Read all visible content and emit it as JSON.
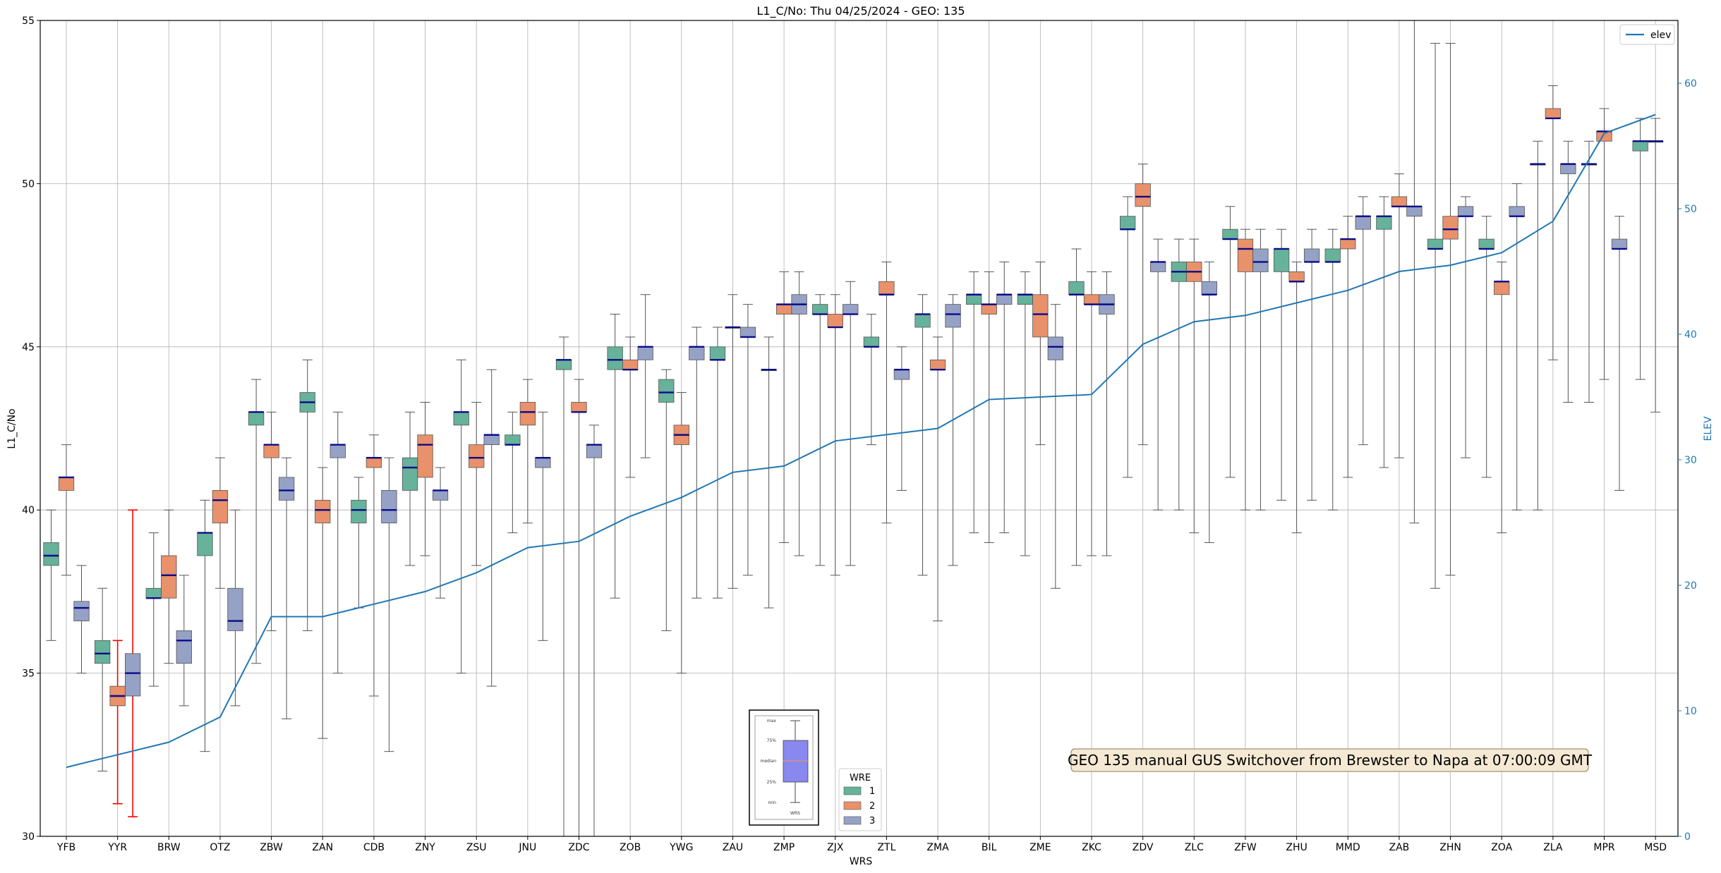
{
  "chart_data": {
    "type": "boxplot",
    "title": "L1_C/No: Thu 04/25/2024 - GEO: 135",
    "xlabel": "WRS",
    "ylabel": "L1_C/No",
    "ylabel_right": "ELEV",
    "ylim": [
      30,
      55
    ],
    "ylim_right": [
      0,
      65
    ],
    "yticks": [
      30,
      35,
      40,
      45,
      50,
      55
    ],
    "yticks_right": [
      0,
      10,
      20,
      30,
      40,
      50,
      60
    ],
    "grid": true,
    "categories": [
      "YFB",
      "YYR",
      "BRW",
      "OTZ",
      "ZBW",
      "ZAN",
      "CDB",
      "ZNY",
      "ZSU",
      "JNU",
      "ZDC",
      "ZOB",
      "YWG",
      "ZAU",
      "ZMP",
      "ZJX",
      "ZTL",
      "ZMA",
      "BIL",
      "ZME",
      "ZKC",
      "ZDV",
      "ZLC",
      "ZFW",
      "ZHU",
      "MMD",
      "ZAB",
      "ZHN",
      "ZOA",
      "ZLA",
      "MPR",
      "MSD"
    ],
    "wre_legend": {
      "title": "WRE",
      "entries": [
        {
          "label": "1",
          "color": "#66b29a"
        },
        {
          "label": "2",
          "color": "#e8916b"
        },
        {
          "label": "3",
          "color": "#95a1c5"
        }
      ]
    },
    "series_legend": {
      "label": "elev",
      "color": "#1f77b4",
      "position": "upper right"
    },
    "inset_labels": [
      "max",
      "75%",
      "median",
      "25%",
      "min",
      "WRS"
    ],
    "annotation": "GEO 135 manual GUS Switchover from Brewster to Napa at 07:00:09 GMT",
    "elev": [
      5.5,
      6.5,
      7.5,
      9.5,
      17.5,
      17.5,
      18.5,
      19.5,
      21,
      23,
      23.5,
      25.5,
      27,
      29,
      29.5,
      31.5,
      32,
      32.5,
      34.8,
      35,
      35.2,
      39.2,
      41,
      41.5,
      42.5,
      43.5,
      45,
      45.5,
      46.5,
      49,
      56,
      57.5
    ],
    "boxes": [
      {
        "cat": 0,
        "wre": 1,
        "min": 36,
        "q1": 38.3,
        "med": 38.6,
        "q3": 39,
        "max": 40
      },
      {
        "cat": 0,
        "wre": 2,
        "min": 38,
        "q1": 40.6,
        "med": 41,
        "q3": 41,
        "max": 42
      },
      {
        "cat": 0,
        "wre": 3,
        "min": 35,
        "q1": 36.6,
        "med": 37,
        "q3": 37.2,
        "max": 38.3
      },
      {
        "cat": 1,
        "wre": 1,
        "min": 32,
        "q1": 35.3,
        "med": 35.6,
        "q3": 36,
        "max": 37.6
      },
      {
        "cat": 1,
        "wre": 2,
        "min": 31,
        "q1": 34,
        "med": 34.3,
        "q3": 34.6,
        "max": 36,
        "whisker_color": "#ff0000"
      },
      {
        "cat": 1,
        "wre": 3,
        "min": 30.6,
        "q1": 34.3,
        "med": 35,
        "q3": 35.6,
        "max": 40,
        "whisker_color": "#ff0000"
      },
      {
        "cat": 2,
        "wre": 1,
        "min": 34.6,
        "q1": 37.3,
        "med": 37.3,
        "q3": 37.6,
        "max": 39.3
      },
      {
        "cat": 2,
        "wre": 2,
        "min": 35.3,
        "q1": 37.3,
        "med": 38,
        "q3": 38.6,
        "max": 40
      },
      {
        "cat": 2,
        "wre": 3,
        "min": 34,
        "q1": 35.3,
        "med": 36,
        "q3": 36.3,
        "max": 38
      },
      {
        "cat": 3,
        "wre": 1,
        "min": 32.6,
        "q1": 38.6,
        "med": 39.3,
        "q3": 39.3,
        "max": 40.3
      },
      {
        "cat": 3,
        "wre": 2,
        "min": 37.6,
        "q1": 39.6,
        "med": 40.3,
        "q3": 40.6,
        "max": 41.6
      },
      {
        "cat": 3,
        "wre": 3,
        "min": 34,
        "q1": 36.3,
        "med": 36.6,
        "q3": 37.6,
        "max": 40
      },
      {
        "cat": 4,
        "wre": 1,
        "min": 35.3,
        "q1": 42.6,
        "med": 43,
        "q3": 43,
        "max": 44
      },
      {
        "cat": 4,
        "wre": 2,
        "min": 36.3,
        "q1": 41.6,
        "med": 42,
        "q3": 42,
        "max": 43
      },
      {
        "cat": 4,
        "wre": 3,
        "min": 33.6,
        "q1": 40.3,
        "med": 40.6,
        "q3": 41,
        "max": 41.6
      },
      {
        "cat": 5,
        "wre": 1,
        "min": 36.3,
        "q1": 43,
        "med": 43.3,
        "q3": 43.6,
        "max": 44.6
      },
      {
        "cat": 5,
        "wre": 2,
        "min": 33,
        "q1": 39.6,
        "med": 40,
        "q3": 40.3,
        "max": 41.3
      },
      {
        "cat": 5,
        "wre": 3,
        "min": 35,
        "q1": 41.6,
        "med": 42,
        "q3": 42,
        "max": 43
      },
      {
        "cat": 6,
        "wre": 1,
        "min": 37,
        "q1": 39.6,
        "med": 40,
        "q3": 40.3,
        "max": 41
      },
      {
        "cat": 6,
        "wre": 2,
        "min": 34.3,
        "q1": 41.3,
        "med": 41.6,
        "q3": 41.6,
        "max": 42.3
      },
      {
        "cat": 6,
        "wre": 3,
        "min": 32.6,
        "q1": 39.6,
        "med": 40,
        "q3": 40.6,
        "max": 41.6
      },
      {
        "cat": 7,
        "wre": 1,
        "min": 38.3,
        "q1": 40.6,
        "med": 41.3,
        "q3": 41.6,
        "max": 43
      },
      {
        "cat": 7,
        "wre": 2,
        "min": 38.6,
        "q1": 41,
        "med": 42,
        "q3": 42.3,
        "max": 43.3
      },
      {
        "cat": 7,
        "wre": 3,
        "min": 37.3,
        "q1": 40.3,
        "med": 40.6,
        "q3": 40.6,
        "max": 41.3
      },
      {
        "cat": 8,
        "wre": 1,
        "min": 35,
        "q1": 42.6,
        "med": 43,
        "q3": 43,
        "max": 44.6
      },
      {
        "cat": 8,
        "wre": 2,
        "min": 38.3,
        "q1": 41.3,
        "med": 41.6,
        "q3": 42,
        "max": 43.3
      },
      {
        "cat": 8,
        "wre": 3,
        "min": 34.6,
        "q1": 42,
        "med": 42.3,
        "q3": 42.3,
        "max": 44.3
      },
      {
        "cat": 9,
        "wre": 1,
        "min": 39.3,
        "q1": 42,
        "med": 42,
        "q3": 42.3,
        "max": 43
      },
      {
        "cat": 9,
        "wre": 2,
        "min": 39.6,
        "q1": 42.6,
        "med": 43,
        "q3": 43.3,
        "max": 44
      },
      {
        "cat": 9,
        "wre": 3,
        "min": 36,
        "q1": 41.3,
        "med": 41.6,
        "q3": 41.6,
        "max": 43
      },
      {
        "cat": 10,
        "wre": 1,
        "min": 30,
        "q1": 44.3,
        "med": 44.6,
        "q3": 44.6,
        "max": 45.3
      },
      {
        "cat": 10,
        "wre": 2,
        "min": 30,
        "q1": 43,
        "med": 43,
        "q3": 43.3,
        "max": 44
      },
      {
        "cat": 10,
        "wre": 3,
        "min": 30,
        "q1": 41.6,
        "med": 42,
        "q3": 42,
        "max": 42.6
      },
      {
        "cat": 11,
        "wre": 1,
        "min": 37.3,
        "q1": 44.3,
        "med": 44.6,
        "q3": 45,
        "max": 46
      },
      {
        "cat": 11,
        "wre": 2,
        "min": 41,
        "q1": 44.3,
        "med": 44.3,
        "q3": 44.6,
        "max": 45.3
      },
      {
        "cat": 11,
        "wre": 3,
        "min": 41.6,
        "q1": 44.6,
        "med": 45,
        "q3": 45,
        "max": 46.6
      },
      {
        "cat": 12,
        "wre": 1,
        "min": 36.3,
        "q1": 43.3,
        "med": 43.6,
        "q3": 44,
        "max": 44.3
      },
      {
        "cat": 12,
        "wre": 2,
        "min": 35,
        "q1": 42,
        "med": 42.3,
        "q3": 42.6,
        "max": 43.6
      },
      {
        "cat": 12,
        "wre": 3,
        "min": 37.3,
        "q1": 44.6,
        "med": 45,
        "q3": 45,
        "max": 45.6
      },
      {
        "cat": 13,
        "wre": 1,
        "min": 37.3,
        "q1": 44.6,
        "med": 44.6,
        "q3": 45,
        "max": 45.6
      },
      {
        "cat": 13,
        "wre": 2,
        "min": 37.6,
        "q1": 45.6,
        "med": 45.6,
        "q3": 45.6,
        "max": 46.6
      },
      {
        "cat": 13,
        "wre": 3,
        "min": 38,
        "q1": 45.3,
        "med": 45.3,
        "q3": 45.6,
        "max": 46.3
      },
      {
        "cat": 14,
        "wre": 1,
        "min": 37,
        "q1": 44.3,
        "med": 44.3,
        "q3": 44.3,
        "max": 45.3
      },
      {
        "cat": 14,
        "wre": 2,
        "min": 39,
        "q1": 46,
        "med": 46.3,
        "q3": 46.3,
        "max": 47.3
      },
      {
        "cat": 14,
        "wre": 3,
        "min": 38.6,
        "q1": 46,
        "med": 46.3,
        "q3": 46.6,
        "max": 47.3
      },
      {
        "cat": 15,
        "wre": 1,
        "min": 38.3,
        "q1": 46,
        "med": 46,
        "q3": 46.3,
        "max": 46.6
      },
      {
        "cat": 15,
        "wre": 2,
        "min": 38,
        "q1": 45.6,
        "med": 45.6,
        "q3": 46,
        "max": 46.6
      },
      {
        "cat": 15,
        "wre": 3,
        "min": 38.3,
        "q1": 46,
        "med": 46,
        "q3": 46.3,
        "max": 47
      },
      {
        "cat": 16,
        "wre": 1,
        "min": 42,
        "q1": 45,
        "med": 45,
        "q3": 45.3,
        "max": 46
      },
      {
        "cat": 16,
        "wre": 2,
        "min": 39.6,
        "q1": 46.6,
        "med": 46.6,
        "q3": 47,
        "max": 47.6
      },
      {
        "cat": 16,
        "wre": 3,
        "min": 40.6,
        "q1": 44,
        "med": 44.3,
        "q3": 44.3,
        "max": 45
      },
      {
        "cat": 17,
        "wre": 1,
        "min": 38,
        "q1": 45.6,
        "med": 46,
        "q3": 46,
        "max": 46.6
      },
      {
        "cat": 17,
        "wre": 2,
        "min": 36.6,
        "q1": 44.3,
        "med": 44.3,
        "q3": 44.6,
        "max": 45.3
      },
      {
        "cat": 17,
        "wre": 3,
        "min": 38.3,
        "q1": 45.6,
        "med": 46,
        "q3": 46.3,
        "max": 46.6
      },
      {
        "cat": 18,
        "wre": 1,
        "min": 39.3,
        "q1": 46.3,
        "med": 46.6,
        "q3": 46.6,
        "max": 47.3
      },
      {
        "cat": 18,
        "wre": 2,
        "min": 39,
        "q1": 46,
        "med": 46.3,
        "q3": 46.3,
        "max": 47.3
      },
      {
        "cat": 18,
        "wre": 3,
        "min": 39.3,
        "q1": 46.3,
        "med": 46.6,
        "q3": 46.6,
        "max": 47.6
      },
      {
        "cat": 19,
        "wre": 1,
        "min": 38.6,
        "q1": 46.3,
        "med": 46.6,
        "q3": 46.6,
        "max": 47.3
      },
      {
        "cat": 19,
        "wre": 2,
        "min": 42,
        "q1": 45.3,
        "med": 46,
        "q3": 46.6,
        "max": 47.6
      },
      {
        "cat": 19,
        "wre": 3,
        "min": 37.6,
        "q1": 44.6,
        "med": 45,
        "q3": 45.3,
        "max": 46.3
      },
      {
        "cat": 20,
        "wre": 1,
        "min": 38.3,
        "q1": 46.6,
        "med": 46.6,
        "q3": 47,
        "max": 48
      },
      {
        "cat": 20,
        "wre": 2,
        "min": 38.6,
        "q1": 46.3,
        "med": 46.3,
        "q3": 46.6,
        "max": 47.3
      },
      {
        "cat": 20,
        "wre": 3,
        "min": 38.6,
        "q1": 46,
        "med": 46.3,
        "q3": 46.6,
        "max": 47.3
      },
      {
        "cat": 21,
        "wre": 1,
        "min": 41,
        "q1": 48.6,
        "med": 48.6,
        "q3": 49,
        "max": 49.6
      },
      {
        "cat": 21,
        "wre": 2,
        "min": 42,
        "q1": 49.3,
        "med": 49.6,
        "q3": 50,
        "max": 50.6
      },
      {
        "cat": 21,
        "wre": 3,
        "min": 40,
        "q1": 47.3,
        "med": 47.6,
        "q3": 47.6,
        "max": 48.3
      },
      {
        "cat": 22,
        "wre": 1,
        "min": 40,
        "q1": 47,
        "med": 47.3,
        "q3": 47.6,
        "max": 48.3
      },
      {
        "cat": 22,
        "wre": 2,
        "min": 39.3,
        "q1": 47,
        "med": 47.3,
        "q3": 47.6,
        "max": 48.3
      },
      {
        "cat": 22,
        "wre": 3,
        "min": 39,
        "q1": 46.6,
        "med": 46.6,
        "q3": 47,
        "max": 47.6
      },
      {
        "cat": 23,
        "wre": 1,
        "min": 41,
        "q1": 48.3,
        "med": 48.3,
        "q3": 48.6,
        "max": 49.3
      },
      {
        "cat": 23,
        "wre": 2,
        "min": 40,
        "q1": 47.3,
        "med": 48,
        "q3": 48.3,
        "max": 48.6
      },
      {
        "cat": 23,
        "wre": 3,
        "min": 40,
        "q1": 47.3,
        "med": 47.6,
        "q3": 48,
        "max": 48.6
      },
      {
        "cat": 24,
        "wre": 1,
        "min": 40.3,
        "q1": 47.3,
        "med": 48,
        "q3": 48,
        "max": 48.6
      },
      {
        "cat": 24,
        "wre": 2,
        "min": 39.3,
        "q1": 47,
        "med": 47,
        "q3": 47.3,
        "max": 47.6
      },
      {
        "cat": 24,
        "wre": 3,
        "min": 40.3,
        "q1": 47.6,
        "med": 47.6,
        "q3": 48,
        "max": 48.6
      },
      {
        "cat": 25,
        "wre": 1,
        "min": 40,
        "q1": 47.6,
        "med": 47.6,
        "q3": 48,
        "max": 48.6
      },
      {
        "cat": 25,
        "wre": 2,
        "min": 41,
        "q1": 48,
        "med": 48.3,
        "q3": 48.3,
        "max": 49
      },
      {
        "cat": 25,
        "wre": 3,
        "min": 42,
        "q1": 48.6,
        "med": 49,
        "q3": 49,
        "max": 49.6
      },
      {
        "cat": 26,
        "wre": 1,
        "min": 41.3,
        "q1": 48.6,
        "med": 49,
        "q3": 49,
        "max": 49.6
      },
      {
        "cat": 26,
        "wre": 2,
        "min": 41.6,
        "q1": 49.3,
        "med": 49.3,
        "q3": 49.6,
        "max": 50.3
      },
      {
        "cat": 26,
        "wre": 3,
        "min": 39.6,
        "q1": 49,
        "med": 49.3,
        "q3": 49.3,
        "max": 55
      },
      {
        "cat": 27,
        "wre": 1,
        "min": 37.6,
        "q1": 48,
        "med": 48,
        "q3": 48.3,
        "max": 54.3
      },
      {
        "cat": 27,
        "wre": 2,
        "min": 38,
        "q1": 48.3,
        "med": 48.6,
        "q3": 49,
        "max": 54.3
      },
      {
        "cat": 27,
        "wre": 3,
        "min": 41.6,
        "q1": 49,
        "med": 49,
        "q3": 49.3,
        "max": 49.6
      },
      {
        "cat": 28,
        "wre": 1,
        "min": 41,
        "q1": 48,
        "med": 48,
        "q3": 48.3,
        "max": 49
      },
      {
        "cat": 28,
        "wre": 2,
        "min": 39.3,
        "q1": 46.6,
        "med": 47,
        "q3": 47,
        "max": 47.6
      },
      {
        "cat": 28,
        "wre": 3,
        "min": 40,
        "q1": 49,
        "med": 49,
        "q3": 49.3,
        "max": 50
      },
      {
        "cat": 29,
        "wre": 1,
        "min": 40,
        "q1": 50.6,
        "med": 50.6,
        "q3": 50.6,
        "max": 51.3
      },
      {
        "cat": 29,
        "wre": 2,
        "min": 44.6,
        "q1": 52,
        "med": 52,
        "q3": 52.3,
        "max": 53
      },
      {
        "cat": 29,
        "wre": 3,
        "min": 43.3,
        "q1": 50.3,
        "med": 50.6,
        "q3": 50.6,
        "max": 51.3
      },
      {
        "cat": 30,
        "wre": 1,
        "min": 43.3,
        "q1": 50.6,
        "med": 50.6,
        "q3": 50.6,
        "max": 51.3
      },
      {
        "cat": 30,
        "wre": 2,
        "min": 44,
        "q1": 51.3,
        "med": 51.6,
        "q3": 51.6,
        "max": 52.3
      },
      {
        "cat": 30,
        "wre": 3,
        "min": 40.6,
        "q1": 48,
        "med": 48,
        "q3": 48.3,
        "max": 49
      },
      {
        "cat": 31,
        "wre": 1,
        "min": 44,
        "q1": 51,
        "med": 51.3,
        "q3": 51.3,
        "max": 52
      },
      {
        "cat": 31,
        "wre": 2,
        "min": 43,
        "q1": 51.3,
        "med": 51.3,
        "q3": 51.3,
        "max": 52
      }
    ]
  }
}
